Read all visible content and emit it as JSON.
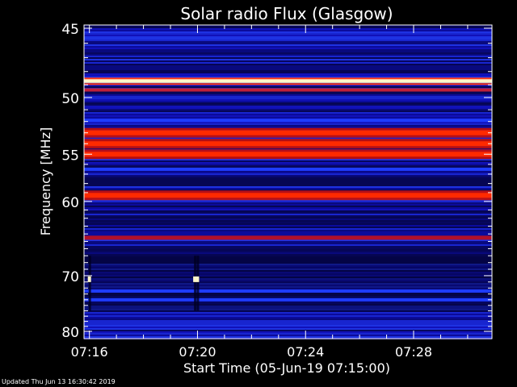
{
  "chart_data": {
    "type": "heatmap",
    "title": "Solar radio Flux (Glasgow)",
    "xlabel": "Start Time (05-Jun-19 07:15:00)",
    "ylabel_main": "Frequency ",
    "ylabel_unit": "[MHz]",
    "x_tick_labels": [
      "07:16",
      "07:20",
      "07:24",
      "07:28"
    ],
    "x_tick_minutes": [
      16,
      20,
      24,
      28
    ],
    "x_range_minutes": [
      15.8,
      30.9
    ],
    "y_tick_labels": [
      "45",
      "50",
      "55",
      "60",
      "70",
      "80"
    ],
    "y_ticks": [
      45,
      50,
      55,
      60,
      70,
      80
    ],
    "y_range": [
      45,
      80
    ],
    "y_scale": "reciprocal",
    "colors": {
      "background": "#000000",
      "low": "#0a0a8c",
      "mid": "#1e3cff",
      "high": "#ff2a00",
      "peak": "#fff6c8"
    },
    "frequency_bands": [
      {
        "freq": 48.7,
        "level": "peak"
      },
      {
        "freq": 49.4,
        "level": "mid-red"
      },
      {
        "freq": 51.9,
        "level": "mid"
      },
      {
        "freq": 53.0,
        "level": "high"
      },
      {
        "freq": 54.0,
        "level": "high"
      },
      {
        "freq": 55.0,
        "level": "high"
      },
      {
        "freq": 56.5,
        "level": "mid"
      },
      {
        "freq": 59.3,
        "level": "high"
      },
      {
        "freq": 64.5,
        "level": "red-dim"
      },
      {
        "freq": 72.5,
        "level": "mid"
      },
      {
        "freq": 74.0,
        "level": "mid"
      }
    ],
    "bursts": [
      {
        "minute": 16.0,
        "freq": 70.5
      },
      {
        "minute": 19.9,
        "freq": 70.5
      },
      {
        "minute": 20.0,
        "freq": 70.5
      }
    ]
  },
  "footer": "Updated Thu Jun 13 16:30:42 2019"
}
